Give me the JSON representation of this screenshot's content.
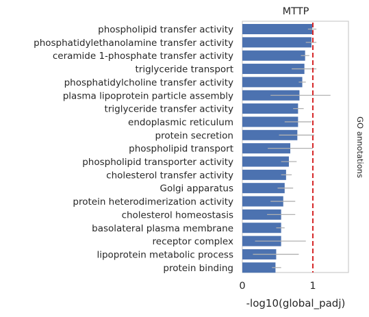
{
  "chart_data": {
    "type": "bar",
    "orientation": "horizontal",
    "title": "MTTP",
    "xlabel": "-log10(global_padj)",
    "ylabel": "",
    "right_label": "GO annotations",
    "xlim": [
      0,
      1.5
    ],
    "xticks": [
      0,
      1
    ],
    "xtick_labels": [
      "0",
      "1"
    ],
    "threshold": 1,
    "grid": false,
    "colors": {
      "bar": "#4c72b0",
      "errorbar": "#b0b0b0",
      "threshold": "#d62728",
      "frame": "#cccccc"
    },
    "categories": [
      "phospholipid transfer activity",
      "phosphatidylethanolamine transfer activity",
      "ceramide 1-phosphate transfer activity",
      "triglyceride transport",
      "phosphatidylcholine transfer activity",
      "plasma lipoprotein particle assembly",
      "triglyceride transfer activity",
      "endoplasmic reticulum",
      "protein secretion",
      "phospholipid transport",
      "phospholipid transporter activity",
      "cholesterol transfer activity",
      "Golgi apparatus",
      "protein heterodimerization activity",
      "cholesterol homeostasis",
      "basolateral plasma membrane",
      "receptor complex",
      "lipoprotein metabolic process",
      "protein binding"
    ],
    "values": [
      0.99,
      0.98,
      0.89,
      0.88,
      0.85,
      0.81,
      0.79,
      0.79,
      0.78,
      0.68,
      0.66,
      0.62,
      0.6,
      0.58,
      0.55,
      0.55,
      0.55,
      0.48,
      0.47
    ],
    "errors": [
      [
        0.93,
        1.05
      ],
      [
        0.9,
        1.05
      ],
      [
        0.83,
        0.95
      ],
      [
        0.7,
        1.05
      ],
      [
        0.8,
        0.9
      ],
      [
        0.4,
        1.25
      ],
      [
        0.72,
        0.87
      ],
      [
        0.6,
        0.98
      ],
      [
        0.52,
        1.02
      ],
      [
        0.36,
        1.0
      ],
      [
        0.55,
        0.77
      ],
      [
        0.55,
        0.7
      ],
      [
        0.5,
        0.72
      ],
      [
        0.4,
        0.75
      ],
      [
        0.35,
        0.75
      ],
      [
        0.48,
        0.6
      ],
      [
        0.18,
        0.9
      ],
      [
        0.15,
        0.8
      ],
      [
        0.42,
        0.55
      ]
    ]
  }
}
